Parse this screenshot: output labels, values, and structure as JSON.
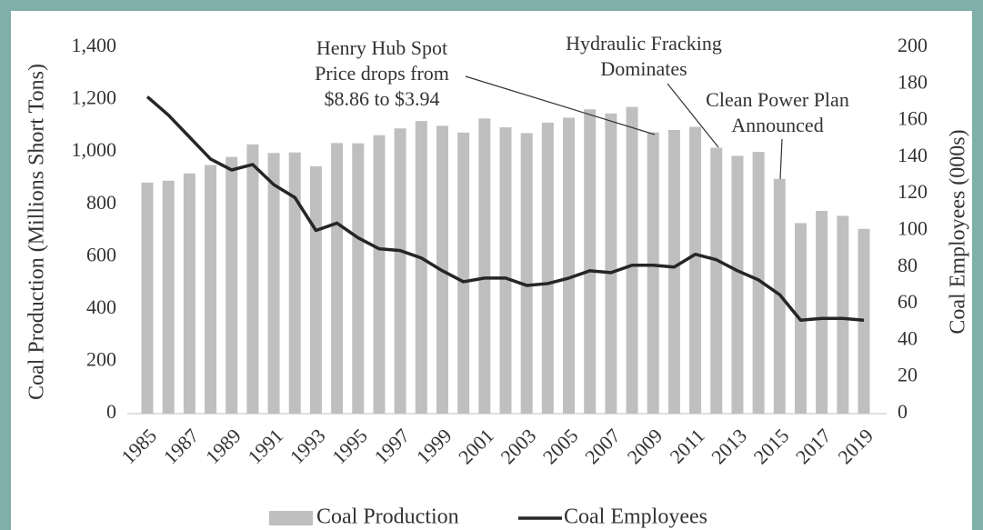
{
  "chart_data": {
    "type": "bar",
    "categories": [
      "1985",
      null,
      "1987",
      null,
      "1989",
      null,
      "1991",
      null,
      "1993",
      null,
      "1995",
      null,
      "1997",
      null,
      "1999",
      null,
      "2001",
      null,
      "2003",
      null,
      "2005",
      null,
      "2007",
      null,
      "2009",
      null,
      "2011",
      null,
      "2013",
      null,
      "2015",
      null,
      "2017",
      null,
      "2019"
    ],
    "series": [
      {
        "name": "Coal Production",
        "color": "#bfbfbf",
        "type": "bar",
        "values": [
          883,
          890,
          918,
          950,
          981,
          1029,
          996,
          998,
          945,
          1034,
          1033,
          1064,
          1090,
          1118,
          1100,
          1074,
          1128,
          1094,
          1072,
          1112,
          1131,
          1163,
          1147,
          1172,
          1075,
          1084,
          1096,
          1016,
          985,
          1000,
          897,
          728,
          775,
          756,
          706
        ]
      },
      {
        "name": "Coal Employees",
        "color": "#262626",
        "type": "line",
        "axis": "y2",
        "values": [
          173,
          163,
          151,
          139,
          133,
          136,
          125,
          118,
          100,
          104,
          96,
          90,
          89,
          85,
          78,
          72,
          74,
          74,
          70,
          71,
          74,
          78,
          77,
          81,
          81,
          80,
          87,
          84,
          78,
          73,
          65,
          51,
          52,
          52,
          51
        ]
      }
    ],
    "y_label": "Coal Production (Millions Short Tons)",
    "y2_label": "Coal Employees (000s)",
    "ylim": [
      0,
      1400
    ],
    "yticks": [
      0,
      200,
      400,
      600,
      800,
      {
        "value": 1000,
        "label": "1,000"
      },
      {
        "value": 1200,
        "label": "1,200"
      },
      {
        "value": 1400,
        "label": "1,400"
      }
    ],
    "y2lim": [
      0,
      200
    ],
    "y2ticks": [
      0,
      20,
      40,
      60,
      80,
      100,
      120,
      140,
      160,
      180,
      200
    ],
    "annotations": [
      [
        "Henry Hub Spot",
        "Price drops from",
        "$8.86 to $3.94"
      ],
      [
        "Hydraulic Fracking",
        "Dominates"
      ],
      [
        "Clean Power Plan",
        "Announced"
      ]
    ],
    "legend": "bottom"
  }
}
